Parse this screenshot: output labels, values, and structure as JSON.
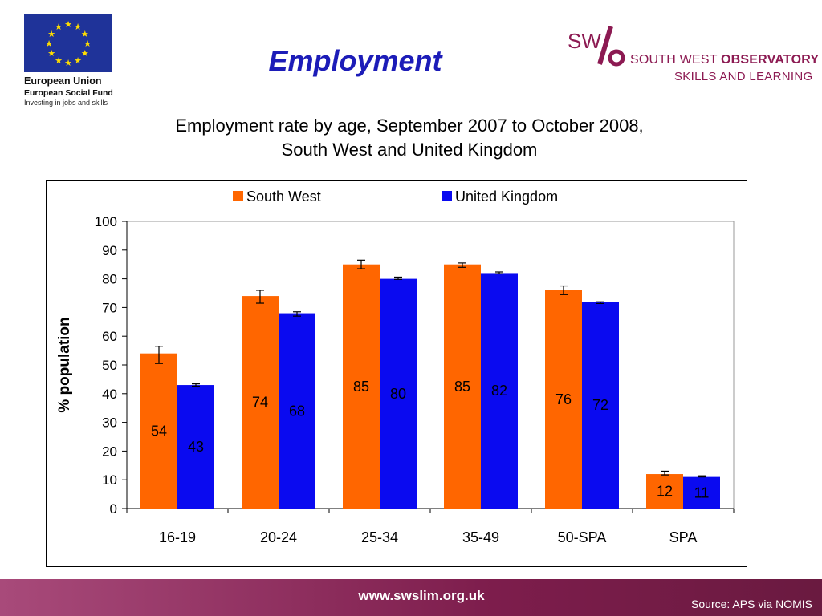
{
  "page": {
    "heading": "Employment",
    "eu": {
      "name": "European Union",
      "fund": "European Social Fund",
      "tagline": "Investing in jobs and skills"
    },
    "sw": {
      "mark": "SW/o",
      "line1_a": "SOUTH WEST ",
      "line1_b": "OBSERVATORY",
      "line2": "SKILLS AND LEARNING"
    },
    "chart_title_line1": "Employment rate by age, September 2007 to October 2008,",
    "chart_title_line2": "South West and United Kingdom",
    "footer": {
      "url": "www.swslim.org.uk",
      "source": "Source: APS via NOMIS"
    },
    "colors": {
      "south_west": "#ff6600",
      "united_kingdom": "#0a0af0",
      "heading": "#1c1cb8",
      "footer": "#7d1d4c"
    }
  },
  "chart_data": {
    "type": "bar",
    "title": "Employment rate by age, September 2007 to October 2008, South West and United Kingdom",
    "ylabel": "% population",
    "xlabel": "",
    "ylim": [
      0,
      100
    ],
    "yticks": [
      0,
      10,
      20,
      30,
      40,
      50,
      60,
      70,
      80,
      90,
      100
    ],
    "categories": [
      "16-19",
      "20-24",
      "25-34",
      "35-49",
      "50-SPA",
      "SPA"
    ],
    "legend_position": "top",
    "grid": false,
    "series": [
      {
        "name": "South West",
        "color": "#ff6600",
        "values": [
          54,
          74,
          85,
          85,
          76,
          12
        ],
        "labels": [
          "54",
          "74",
          "85",
          "85",
          "76",
          "12"
        ],
        "error_low": [
          50.5,
          71.5,
          83.5,
          84,
          74.5,
          11.7
        ],
        "error_high": [
          56.5,
          76,
          86.5,
          85.5,
          77.5,
          13
        ]
      },
      {
        "name": "United Kingdom",
        "color": "#0a0af0",
        "values": [
          43,
          68,
          80,
          82,
          72,
          11
        ],
        "labels": [
          "43",
          "68",
          "80",
          "82",
          "72",
          "11"
        ],
        "error_low": [
          42.6,
          67,
          79.8,
          81.8,
          71.4,
          11
        ],
        "error_high": [
          43.4,
          68.5,
          80.6,
          82.4,
          72,
          11.4
        ]
      }
    ]
  }
}
